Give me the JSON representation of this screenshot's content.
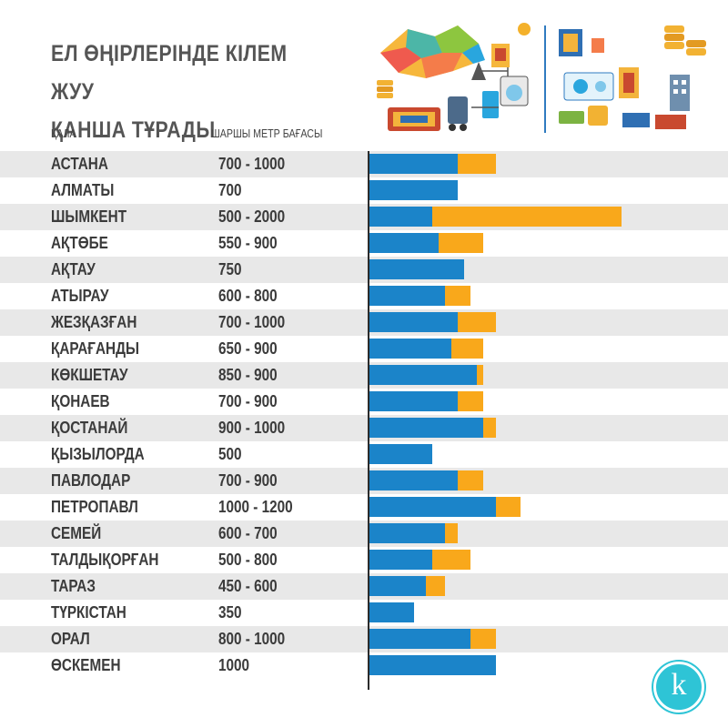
{
  "title_line1": "ЕЛ ӨҢІРЛЕРІНДЕ КІЛЕМ ЖУУ",
  "title_line2": "ҚАНША ТҰРАДЫ",
  "col_city": "ҚАЛА",
  "col_price": "ШАРШЫ МЕТР БАҒАСЫ",
  "logo_letter": "k",
  "colors": {
    "min": "#1b84c9",
    "ext": "#f9a81b",
    "shade": "#e8e8e8",
    "logo": "#2ec4d6"
  },
  "chart_data": {
    "type": "bar",
    "orientation": "horizontal",
    "stacked": "range",
    "xlim": [
      0,
      2000
    ],
    "categories": [
      "АСТАНА",
      "АЛМАТЫ",
      "ШЫМКЕНТ",
      "АҚТӨБЕ",
      "АҚТАУ",
      "АТЫРАУ",
      "ЖЕЗҚАЗҒАН",
      "ҚАРАҒАНДЫ",
      "КӨКШЕТАУ",
      "ҚОНАЕВ",
      "ҚОСТАНАЙ",
      "ҚЫЗЫЛОРДА",
      "ПАВЛОДАР",
      "ПЕТРОПАВЛ",
      "СЕМЕЙ",
      "ТАЛДЫҚОРҒАН",
      "ТАРАЗ",
      "ТҮРКІСТАН",
      "ОРАЛ",
      "ӨСКЕМЕН"
    ],
    "price_labels": [
      "700 - 1000",
      "700",
      "500 - 2000",
      "550 - 900",
      "750",
      "600 - 800",
      "700 - 1000",
      "650 - 900",
      "850 - 900",
      "700 - 900",
      "900 - 1000",
      "500",
      "700 - 900",
      "1000 - 1200",
      "600 - 700",
      "500 - 800",
      "450 - 600",
      "350",
      "800 - 1000",
      "1000"
    ],
    "min": [
      700,
      700,
      500,
      550,
      750,
      600,
      700,
      650,
      850,
      700,
      900,
      500,
      700,
      1000,
      600,
      500,
      450,
      350,
      800,
      1000
    ],
    "max": [
      1000,
      700,
      2000,
      900,
      750,
      800,
      1000,
      900,
      900,
      900,
      1000,
      500,
      900,
      1200,
      700,
      800,
      600,
      350,
      1000,
      1000
    ]
  }
}
